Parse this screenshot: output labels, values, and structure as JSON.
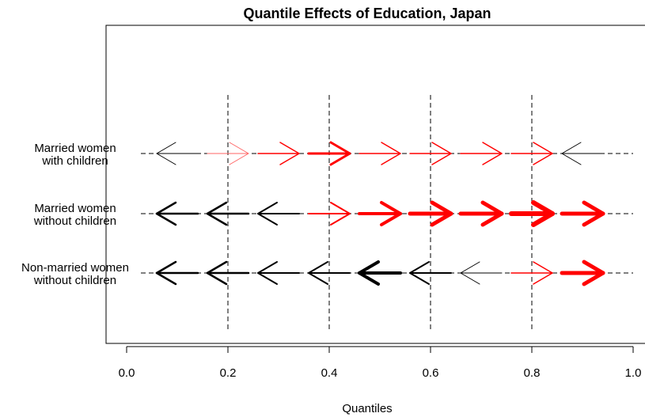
{
  "chart_data": {
    "type": "arrow-plot",
    "title": "Quantile Effects of Education, Japan",
    "xlabel": "Quantiles",
    "ylabel": "",
    "xlim": [
      0.0,
      1.0
    ],
    "x_ticks": [
      "0.0",
      "0.2",
      "0.4",
      "0.6",
      "0.8",
      "1.0"
    ],
    "vertical_reference_lines": [
      0.2,
      0.4,
      0.6,
      0.8
    ],
    "quantiles": [
      0.1,
      0.2,
      0.3,
      0.4,
      0.5,
      0.6,
      0.7,
      0.8,
      0.9
    ],
    "colors": {
      "positive": "#ff0000",
      "negative": "#000000",
      "faint_positive": "#ff6666"
    },
    "rows": [
      {
        "label_line1": "Married women",
        "label_line2": "with children",
        "arrows": [
          {
            "q": 0.1,
            "dir": "left",
            "color": "#000000",
            "weight": 1
          },
          {
            "q": 0.2,
            "dir": "right",
            "color": "#ff6666",
            "weight": 1
          },
          {
            "q": 0.3,
            "dir": "right",
            "color": "#ff0000",
            "weight": 1.5
          },
          {
            "q": 0.4,
            "dir": "right",
            "color": "#ff0000",
            "weight": 3
          },
          {
            "q": 0.5,
            "dir": "right",
            "color": "#ff0000",
            "weight": 1.5
          },
          {
            "q": 0.6,
            "dir": "right",
            "color": "#ff0000",
            "weight": 1.5
          },
          {
            "q": 0.7,
            "dir": "right",
            "color": "#ff0000",
            "weight": 1.5
          },
          {
            "q": 0.8,
            "dir": "right",
            "color": "#ff0000",
            "weight": 1.5
          },
          {
            "q": 0.9,
            "dir": "left",
            "color": "#000000",
            "weight": 1
          }
        ]
      },
      {
        "label_line1": "Married women",
        "label_line2": "without children",
        "arrows": [
          {
            "q": 0.1,
            "dir": "left",
            "color": "#000000",
            "weight": 2.5
          },
          {
            "q": 0.2,
            "dir": "left",
            "color": "#000000",
            "weight": 2.5
          },
          {
            "q": 0.3,
            "dir": "left",
            "color": "#000000",
            "weight": 2
          },
          {
            "q": 0.4,
            "dir": "right",
            "color": "#ff0000",
            "weight": 2
          },
          {
            "q": 0.5,
            "dir": "right",
            "color": "#ff0000",
            "weight": 4
          },
          {
            "q": 0.6,
            "dir": "right",
            "color": "#ff0000",
            "weight": 5
          },
          {
            "q": 0.7,
            "dir": "right",
            "color": "#ff0000",
            "weight": 5
          },
          {
            "q": 0.8,
            "dir": "right",
            "color": "#ff0000",
            "weight": 6
          },
          {
            "q": 0.9,
            "dir": "right",
            "color": "#ff0000",
            "weight": 5
          }
        ]
      },
      {
        "label_line1": "Non-married women",
        "label_line2": "without children",
        "arrows": [
          {
            "q": 0.1,
            "dir": "left",
            "color": "#000000",
            "weight": 2.5
          },
          {
            "q": 0.2,
            "dir": "left",
            "color": "#000000",
            "weight": 2.5
          },
          {
            "q": 0.3,
            "dir": "left",
            "color": "#000000",
            "weight": 2
          },
          {
            "q": 0.4,
            "dir": "left",
            "color": "#000000",
            "weight": 2
          },
          {
            "q": 0.5,
            "dir": "left",
            "color": "#000000",
            "weight": 4
          },
          {
            "q": 0.6,
            "dir": "left",
            "color": "#000000",
            "weight": 2
          },
          {
            "q": 0.7,
            "dir": "left",
            "color": "#000000",
            "weight": 1
          },
          {
            "q": 0.8,
            "dir": "right",
            "color": "#ff0000",
            "weight": 1.5
          },
          {
            "q": 0.9,
            "dir": "right",
            "color": "#ff0000",
            "weight": 5
          }
        ]
      }
    ]
  }
}
